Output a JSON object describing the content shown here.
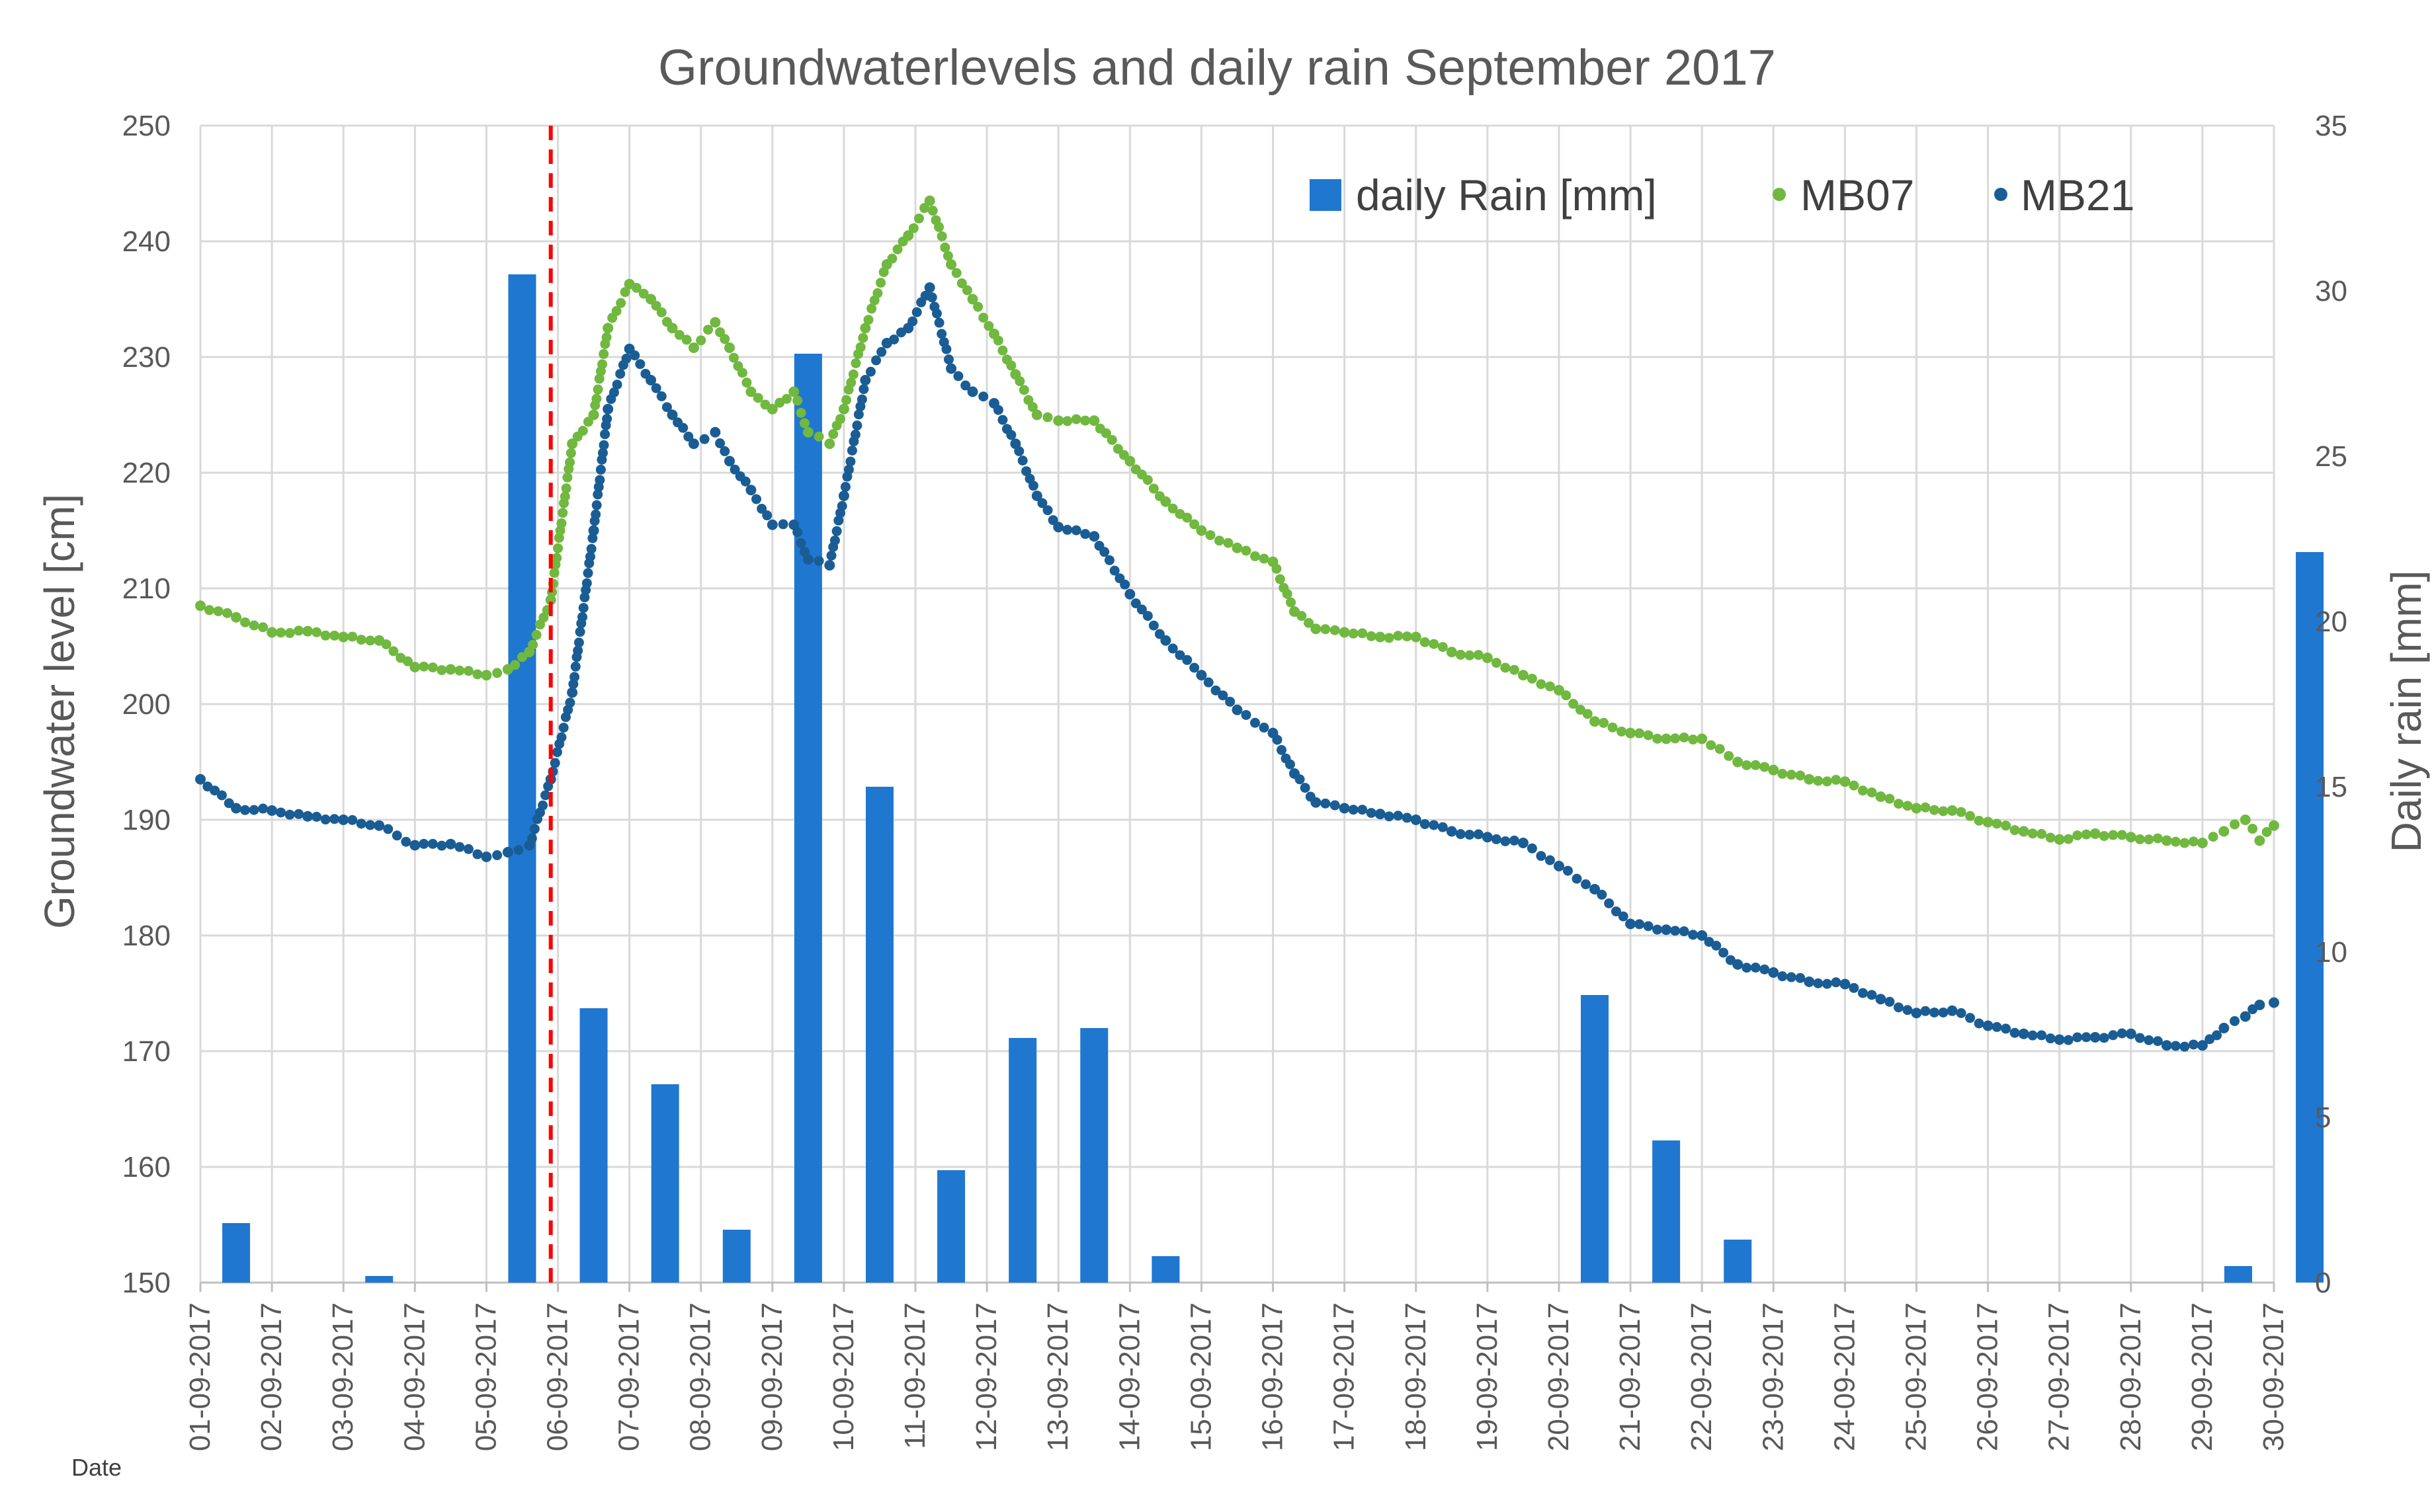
{
  "chart_data": {
    "type": "bar+scatter",
    "title": "Groundwaterlevels and daily rain September 2017",
    "xlabel": "Date",
    "ylabel": "Groundwater level [cm]",
    "y2label": "Daily rain [mm]",
    "ylim": [
      150,
      250
    ],
    "y2lim": [
      0,
      35
    ],
    "y_ticks": [
      150,
      160,
      170,
      180,
      190,
      200,
      210,
      220,
      230,
      240,
      250
    ],
    "y2_ticks": [
      0,
      5,
      10,
      15,
      20,
      25,
      30,
      35
    ],
    "x_range_days": [
      1,
      30
    ],
    "grid": true,
    "legend_position": "top-right",
    "x_tick_labels": [
      "01-09-2017",
      "02-09-2017",
      "03-09-2017",
      "04-09-2017",
      "05-09-2017",
      "06-09-2017",
      "07-09-2017",
      "08-09-2017",
      "09-09-2017",
      "10-09-2017",
      "11-09-2017",
      "12-09-2017",
      "13-09-2017",
      "14-09-2017",
      "15-09-2017",
      "16-09-2017",
      "17-09-2017",
      "18-09-2017",
      "19-09-2017",
      "20-09-2017",
      "21-09-2017",
      "22-09-2017",
      "23-09-2017",
      "24-09-2017",
      "25-09-2017",
      "26-09-2017",
      "27-09-2017",
      "28-09-2017",
      "29-09-2017",
      "30-09-2017"
    ],
    "marker_line": {
      "day": 5.9,
      "style": "dashed",
      "color": "#ff0000"
    },
    "series": [
      {
        "name": "daily Rain [mm]",
        "kind": "bar",
        "axis": "right",
        "color": "#1f77d0",
        "points": [
          [
            1.5,
            1.8
          ],
          [
            3.5,
            0.2
          ],
          [
            5.5,
            30.5
          ],
          [
            6.5,
            8.3
          ],
          [
            7.5,
            6.0
          ],
          [
            8.5,
            1.6
          ],
          [
            9.5,
            28.1
          ],
          [
            10.5,
            15.0
          ],
          [
            11.5,
            3.4
          ],
          [
            12.5,
            7.4
          ],
          [
            13.5,
            7.7
          ],
          [
            14.5,
            0.8
          ],
          [
            20.5,
            8.7
          ],
          [
            21.5,
            4.3
          ],
          [
            22.5,
            1.3
          ],
          [
            29.5,
            0.5
          ],
          [
            30.5,
            22.1
          ]
        ]
      },
      {
        "name": "MB07",
        "kind": "scatter",
        "axis": "left",
        "color": "#70b83f",
        "points": [
          [
            1.0,
            208.5
          ],
          [
            1.5,
            207.5
          ],
          [
            2.0,
            206.2
          ],
          [
            2.5,
            206.3
          ],
          [
            3.0,
            205.8
          ],
          [
            3.5,
            205.5
          ],
          [
            4.0,
            203.2
          ],
          [
            4.5,
            203.0
          ],
          [
            5.0,
            202.5
          ],
          [
            5.3,
            203.0
          ],
          [
            5.6,
            204.5
          ],
          [
            5.9,
            209.0
          ],
          [
            6.2,
            222.5
          ],
          [
            6.5,
            225.0
          ],
          [
            6.7,
            232.5
          ],
          [
            7.0,
            236.3
          ],
          [
            7.3,
            235.0
          ],
          [
            7.6,
            232.5
          ],
          [
            7.9,
            230.8
          ],
          [
            8.2,
            233.0
          ],
          [
            8.4,
            230.8
          ],
          [
            8.7,
            227.0
          ],
          [
            9.0,
            225.5
          ],
          [
            9.3,
            227.0
          ],
          [
            9.5,
            223.5
          ],
          [
            9.8,
            222.5
          ],
          [
            10.0,
            225.5
          ],
          [
            10.3,
            232.5
          ],
          [
            10.6,
            238.0
          ],
          [
            10.9,
            240.5
          ],
          [
            11.2,
            243.5
          ],
          [
            11.5,
            238.0
          ],
          [
            11.8,
            235.0
          ],
          [
            12.1,
            232.0
          ],
          [
            12.4,
            228.5
          ],
          [
            12.7,
            225.0
          ],
          [
            13.0,
            224.5
          ],
          [
            13.5,
            224.5
          ],
          [
            14.0,
            221.0
          ],
          [
            14.5,
            217.5
          ],
          [
            15.0,
            215.0
          ],
          [
            15.5,
            213.5
          ],
          [
            16.0,
            212.3
          ],
          [
            16.3,
            208.0
          ],
          [
            16.6,
            206.5
          ],
          [
            17.0,
            206.2
          ],
          [
            17.5,
            205.8
          ],
          [
            18.0,
            205.8
          ],
          [
            18.5,
            204.5
          ],
          [
            19.0,
            204.0
          ],
          [
            19.5,
            202.5
          ],
          [
            20.0,
            201.2
          ],
          [
            20.5,
            198.5
          ],
          [
            21.0,
            197.5
          ],
          [
            21.5,
            197.0
          ],
          [
            22.0,
            197.0
          ],
          [
            22.5,
            195.0
          ],
          [
            23.0,
            194.3
          ],
          [
            23.5,
            193.5
          ],
          [
            24.0,
            193.3
          ],
          [
            24.5,
            192.0
          ],
          [
            25.0,
            191.0
          ],
          [
            25.5,
            190.8
          ],
          [
            26.0,
            189.8
          ],
          [
            26.5,
            189.0
          ],
          [
            27.0,
            188.3
          ],
          [
            27.5,
            188.8
          ],
          [
            28.0,
            188.5
          ],
          [
            28.5,
            188.2
          ],
          [
            29.0,
            188.0
          ],
          [
            29.3,
            189.0
          ],
          [
            29.6,
            190.0
          ],
          [
            29.8,
            188.2
          ],
          [
            30.0,
            189.5
          ]
        ]
      },
      {
        "name": "MB21",
        "kind": "scatter",
        "axis": "left",
        "color": "#1a5d95",
        "points": [
          [
            1.0,
            193.5
          ],
          [
            1.5,
            191.0
          ],
          [
            2.0,
            190.8
          ],
          [
            2.5,
            190.3
          ],
          [
            3.0,
            190.0
          ],
          [
            3.5,
            189.5
          ],
          [
            4.0,
            187.8
          ],
          [
            4.5,
            187.9
          ],
          [
            5.0,
            186.8
          ],
          [
            5.3,
            187.2
          ],
          [
            5.6,
            187.8
          ],
          [
            5.9,
            193.5
          ],
          [
            6.2,
            201.0
          ],
          [
            6.5,
            215.0
          ],
          [
            6.7,
            225.5
          ],
          [
            7.0,
            230.7
          ],
          [
            7.3,
            228.0
          ],
          [
            7.6,
            225.0
          ],
          [
            7.9,
            222.5
          ],
          [
            8.2,
            223.5
          ],
          [
            8.4,
            221.0
          ],
          [
            8.7,
            218.5
          ],
          [
            9.0,
            215.5
          ],
          [
            9.3,
            215.5
          ],
          [
            9.5,
            212.5
          ],
          [
            9.8,
            212.0
          ],
          [
            10.0,
            218.0
          ],
          [
            10.3,
            228.0
          ],
          [
            10.6,
            231.2
          ],
          [
            10.9,
            232.5
          ],
          [
            11.2,
            236.0
          ],
          [
            11.5,
            229.0
          ],
          [
            11.8,
            227.0
          ],
          [
            12.1,
            226.0
          ],
          [
            12.4,
            222.5
          ],
          [
            12.7,
            218.0
          ],
          [
            13.0,
            215.3
          ],
          [
            13.5,
            214.5
          ],
          [
            14.0,
            209.5
          ],
          [
            14.5,
            205.5
          ],
          [
            15.0,
            202.5
          ],
          [
            15.5,
            199.5
          ],
          [
            16.0,
            197.5
          ],
          [
            16.3,
            194.0
          ],
          [
            16.6,
            191.5
          ],
          [
            17.0,
            191.0
          ],
          [
            17.5,
            190.5
          ],
          [
            18.0,
            190.0
          ],
          [
            18.5,
            189.0
          ],
          [
            19.0,
            188.5
          ],
          [
            19.5,
            188.0
          ],
          [
            20.0,
            186.0
          ],
          [
            20.5,
            184.0
          ],
          [
            21.0,
            181.0
          ],
          [
            21.5,
            180.5
          ],
          [
            22.0,
            180.0
          ],
          [
            22.5,
            177.5
          ],
          [
            23.0,
            176.8
          ],
          [
            23.5,
            176.0
          ],
          [
            24.0,
            175.8
          ],
          [
            24.5,
            174.5
          ],
          [
            25.0,
            173.3
          ],
          [
            25.5,
            173.5
          ],
          [
            26.0,
            172.2
          ],
          [
            26.5,
            171.5
          ],
          [
            27.0,
            171.0
          ],
          [
            27.5,
            171.2
          ],
          [
            28.0,
            171.5
          ],
          [
            28.5,
            170.5
          ],
          [
            29.0,
            170.5
          ],
          [
            29.3,
            172.0
          ],
          [
            29.6,
            173.0
          ],
          [
            29.8,
            174.0
          ],
          [
            30.0,
            174.2
          ]
        ]
      }
    ]
  }
}
